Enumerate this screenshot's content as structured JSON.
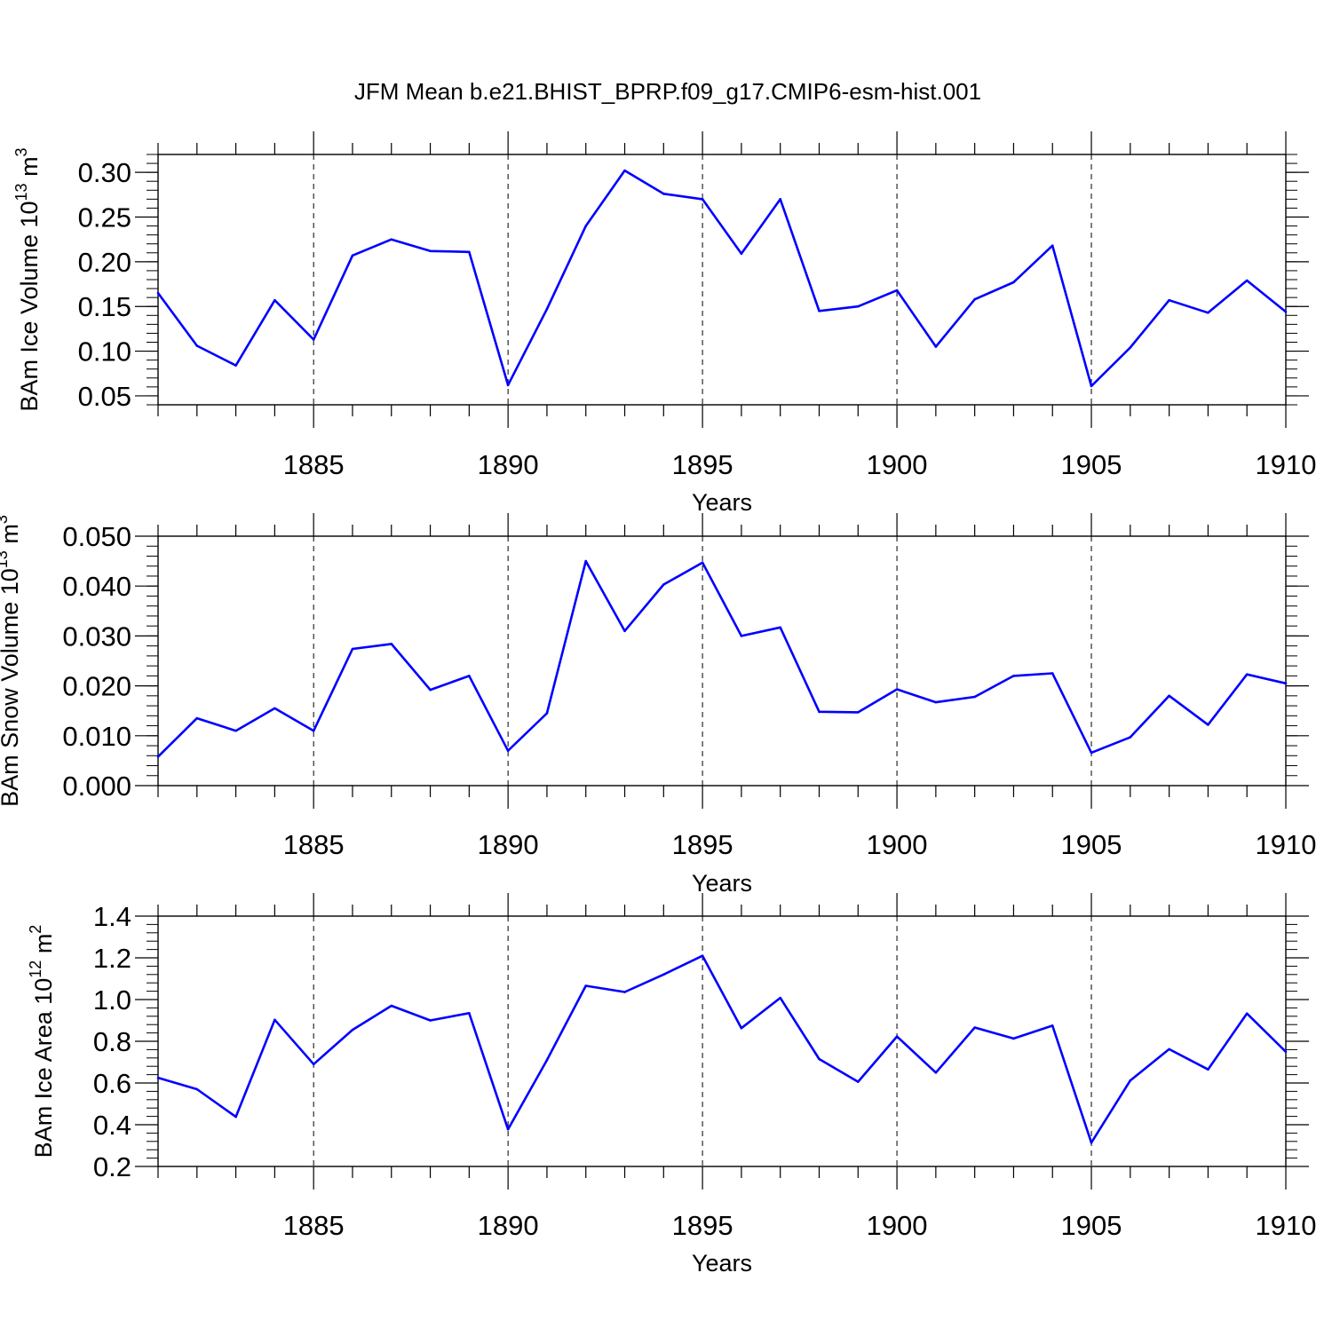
{
  "title": "JFM Mean b.e21.BHIST_BPRP.f09_g17.CMIP6-esm-hist.001",
  "line_color": "#0000ff",
  "chart_data": [
    {
      "type": "line",
      "ylabel": "BAm Ice Volume 10",
      "ylabel_exp": "13",
      "ylabel_unit": " m",
      "ylabel_unit_exp": "3",
      "xlabel": "Years",
      "xlim": [
        1881,
        1910
      ],
      "ylim": [
        0.04,
        0.32
      ],
      "yticks": [
        0.05,
        0.1,
        0.15,
        0.2,
        0.25,
        0.3
      ],
      "ytick_labels": [
        "0.05",
        "0.10",
        "0.15",
        "0.20",
        "0.25",
        "0.30"
      ],
      "yminor_step": 0.01,
      "xticks": [
        1885,
        1890,
        1895,
        1900,
        1905,
        1910
      ],
      "xtick_labels": [
        "1885",
        "1890",
        "1895",
        "1900",
        "1905",
        "1910"
      ],
      "grid": "vertical dashed at major x ticks",
      "x": [
        1881,
        1882,
        1883,
        1884,
        1885,
        1886,
        1887,
        1888,
        1889,
        1890,
        1891,
        1892,
        1893,
        1894,
        1895,
        1896,
        1897,
        1898,
        1899,
        1900,
        1901,
        1902,
        1903,
        1904,
        1905,
        1906,
        1907,
        1908,
        1909,
        1910
      ],
      "y": [
        0.165,
        0.106,
        0.084,
        0.157,
        0.113,
        0.207,
        0.225,
        0.212,
        0.211,
        0.062,
        0.147,
        0.24,
        0.302,
        0.276,
        0.27,
        0.209,
        0.27,
        0.145,
        0.15,
        0.168,
        0.105,
        0.158,
        0.177,
        0.218,
        0.061,
        0.104,
        0.157,
        0.143,
        0.179,
        0.144
      ]
    },
    {
      "type": "line",
      "ylabel": "BAm Snow Volume 10",
      "ylabel_exp": "13",
      "ylabel_unit": " m",
      "ylabel_unit_exp": "3",
      "xlabel": "Years",
      "xlim": [
        1881,
        1910
      ],
      "ylim": [
        0.0,
        0.05
      ],
      "yticks": [
        0.0,
        0.01,
        0.02,
        0.03,
        0.04,
        0.05
      ],
      "ytick_labels": [
        "0.000",
        "0.010",
        "0.020",
        "0.030",
        "0.040",
        "0.050"
      ],
      "yminor_step": 0.002,
      "xticks": [
        1885,
        1890,
        1895,
        1900,
        1905,
        1910
      ],
      "xtick_labels": [
        "1885",
        "1890",
        "1895",
        "1900",
        "1905",
        "1910"
      ],
      "grid": "vertical dashed at major x ticks",
      "x": [
        1881,
        1882,
        1883,
        1884,
        1885,
        1886,
        1887,
        1888,
        1889,
        1890,
        1891,
        1892,
        1893,
        1894,
        1895,
        1896,
        1897,
        1898,
        1899,
        1900,
        1901,
        1902,
        1903,
        1904,
        1905,
        1906,
        1907,
        1908,
        1909,
        1910
      ],
      "y": [
        0.0058,
        0.0135,
        0.011,
        0.0155,
        0.011,
        0.0274,
        0.0284,
        0.0192,
        0.022,
        0.007,
        0.0145,
        0.045,
        0.031,
        0.0403,
        0.0447,
        0.03,
        0.0317,
        0.0148,
        0.0147,
        0.0193,
        0.0167,
        0.0178,
        0.022,
        0.0225,
        0.0066,
        0.0097,
        0.018,
        0.0122,
        0.0223,
        0.0205
      ]
    },
    {
      "type": "line",
      "ylabel": "BAm Ice Area 10",
      "ylabel_exp": "12",
      "ylabel_unit": " m",
      "ylabel_unit_exp": "2",
      "xlabel": "Years",
      "xlim": [
        1881,
        1910
      ],
      "ylim": [
        0.2,
        1.4
      ],
      "yticks": [
        0.2,
        0.4,
        0.6,
        0.8,
        1.0,
        1.2,
        1.4
      ],
      "ytick_labels": [
        "0.2",
        "0.4",
        "0.6",
        "0.8",
        "1.0",
        "1.2",
        "1.4"
      ],
      "yminor_step": 0.04,
      "xticks": [
        1885,
        1890,
        1895,
        1900,
        1905,
        1910
      ],
      "xtick_labels": [
        "1885",
        "1890",
        "1895",
        "1900",
        "1905",
        "1910"
      ],
      "grid": "vertical dashed at major x ticks",
      "x": [
        1881,
        1882,
        1883,
        1884,
        1885,
        1886,
        1887,
        1888,
        1889,
        1890,
        1891,
        1892,
        1893,
        1894,
        1895,
        1896,
        1897,
        1898,
        1899,
        1900,
        1901,
        1902,
        1903,
        1904,
        1905,
        1906,
        1907,
        1908,
        1909,
        1910
      ],
      "y": [
        0.625,
        0.57,
        0.438,
        0.903,
        0.69,
        0.855,
        0.97,
        0.9,
        0.935,
        0.378,
        0.71,
        1.066,
        1.036,
        1.12,
        1.21,
        0.863,
        1.008,
        0.715,
        0.606,
        0.823,
        0.65,
        0.866,
        0.813,
        0.875,
        0.314,
        0.612,
        0.762,
        0.665,
        0.933,
        0.75
      ]
    }
  ]
}
